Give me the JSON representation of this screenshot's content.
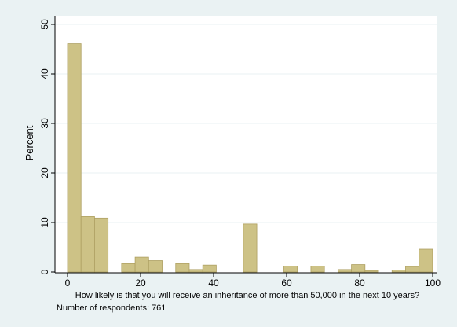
{
  "chart_data": {
    "type": "bar",
    "ylabel": "Percent",
    "xlabel": "How likely is that you will receive an inheritance of more than 50,000 in the next 10 years?",
    "note": "Number of respondents: 761",
    "xlim": [
      0,
      100
    ],
    "ylim": [
      0,
      50
    ],
    "x_ticks": [
      0,
      20,
      40,
      60,
      80,
      100
    ],
    "y_ticks": [
      0,
      10,
      20,
      30,
      40,
      50
    ],
    "grid": "horizontal",
    "bin_width": 3.703,
    "bins": [
      {
        "start": 0.0,
        "value": 46.1
      },
      {
        "start": 3.703,
        "value": 11.2
      },
      {
        "start": 7.406,
        "value": 10.9
      },
      {
        "start": 11.109,
        "value": 0.0
      },
      {
        "start": 14.812,
        "value": 1.7
      },
      {
        "start": 18.515,
        "value": 3.0
      },
      {
        "start": 22.218,
        "value": 2.3
      },
      {
        "start": 25.921,
        "value": 0.0
      },
      {
        "start": 29.624,
        "value": 1.7
      },
      {
        "start": 33.327,
        "value": 0.5
      },
      {
        "start": 37.03,
        "value": 1.4
      },
      {
        "start": 40.733,
        "value": 0.0
      },
      {
        "start": 44.436,
        "value": 0.0
      },
      {
        "start": 48.139,
        "value": 9.7
      },
      {
        "start": 51.842,
        "value": 0.0
      },
      {
        "start": 55.545,
        "value": 0.0
      },
      {
        "start": 59.248,
        "value": 1.2
      },
      {
        "start": 62.951,
        "value": 0.0
      },
      {
        "start": 66.654,
        "value": 1.2
      },
      {
        "start": 70.357,
        "value": 0.0
      },
      {
        "start": 74.06,
        "value": 0.5
      },
      {
        "start": 77.763,
        "value": 1.5
      },
      {
        "start": 81.466,
        "value": 0.3
      },
      {
        "start": 85.169,
        "value": 0.0
      },
      {
        "start": 88.872,
        "value": 0.4
      },
      {
        "start": 92.575,
        "value": 1.1
      },
      {
        "start": 96.278,
        "value": 4.6
      }
    ]
  },
  "colors": {
    "background": "#eaf2f3",
    "plot_background": "#ffffff",
    "bar_fill": "#cdc286",
    "bar_stroke": "#aea062",
    "grid": "#eaf2f3"
  }
}
